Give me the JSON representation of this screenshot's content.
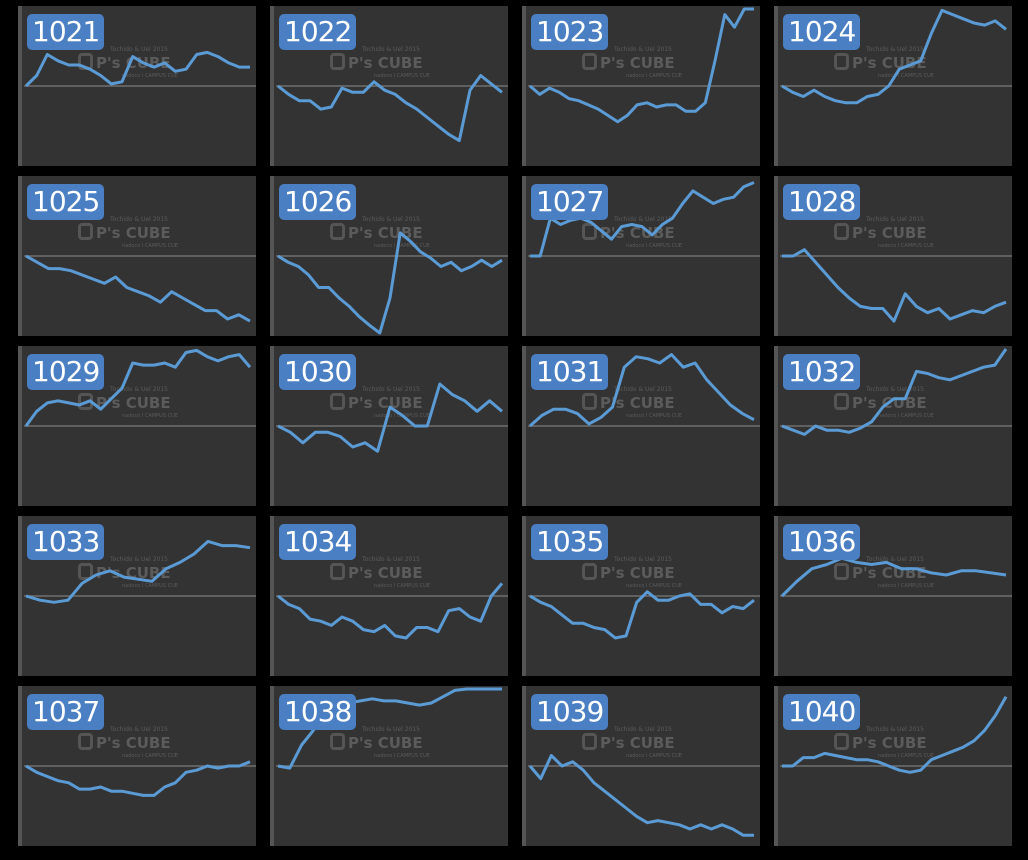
{
  "chart_data": [
    {
      "type": "line",
      "title": "1021",
      "baseline": 0,
      "y": [
        0,
        5,
        15,
        12,
        10,
        10,
        8,
        5,
        1,
        2,
        14,
        11,
        9,
        11,
        7,
        8,
        15,
        16,
        14,
        11,
        9,
        9
      ]
    },
    {
      "type": "line",
      "title": "1022",
      "baseline": 0,
      "y": [
        0,
        -4,
        -7,
        -7,
        -11,
        -10,
        -1,
        -3,
        -3,
        2,
        -2,
        -4,
        -8,
        -11,
        -15,
        -19,
        -23,
        -26,
        -2,
        5,
        1,
        -3
      ]
    },
    {
      "type": "line",
      "title": "1023",
      "baseline": 0,
      "y": [
        0,
        -4,
        -1,
        -3,
        -6,
        -7,
        -9,
        -11,
        -14,
        -17,
        -14,
        -9,
        -8,
        -10,
        -9,
        -9,
        -12,
        -12,
        -8,
        12,
        34,
        28,
        55,
        56
      ]
    },
    {
      "type": "line",
      "title": "1024",
      "baseline": 0,
      "y": [
        0,
        -3,
        -5,
        -2,
        -5,
        -7,
        -8,
        -8,
        -5,
        -4,
        0,
        8,
        10,
        12,
        25,
        36,
        34,
        32,
        30,
        29,
        31,
        27
      ]
    },
    {
      "type": "line",
      "title": "1025",
      "baseline": 0,
      "y": [
        0,
        -3,
        -6,
        -6,
        -7,
        -9,
        -11,
        -13,
        -10,
        -15,
        -17,
        -19,
        -22,
        -17,
        -20,
        -23,
        -26,
        -26,
        -30,
        -28,
        -31
      ]
    },
    {
      "type": "line",
      "title": "1026",
      "baseline": 0,
      "y": [
        0,
        -3,
        -5,
        -9,
        -15,
        -15,
        -20,
        -24,
        -29,
        -33,
        -38,
        -20,
        11,
        7,
        2,
        -1,
        -5,
        -3,
        -7,
        -5,
        -2,
        -5,
        -2
      ]
    },
    {
      "type": "line",
      "title": "1027",
      "baseline": 0,
      "y": [
        0,
        0,
        18,
        15,
        17,
        18,
        16,
        12,
        8,
        14,
        15,
        14,
        10,
        15,
        18,
        25,
        31,
        28,
        25,
        27,
        28,
        33,
        35
      ]
    },
    {
      "type": "line",
      "title": "1028",
      "baseline": 0,
      "y": [
        0,
        0,
        3,
        -3,
        -9,
        -15,
        -20,
        -24,
        -25,
        -25,
        -31,
        -18,
        -24,
        -27,
        -25,
        -30,
        -28,
        -26,
        -27,
        -24,
        -22
      ]
    },
    {
      "type": "line",
      "title": "1029",
      "baseline": 0,
      "y": [
        0,
        7,
        11,
        12,
        11,
        10,
        12,
        8,
        13,
        18,
        30,
        29,
        29,
        30,
        28,
        35,
        36,
        33,
        31,
        33,
        34,
        28
      ]
    },
    {
      "type": "line",
      "title": "1030",
      "baseline": 0,
      "y": [
        0,
        -3,
        -8,
        -3,
        -3,
        -5,
        -10,
        -8,
        -12,
        9,
        5,
        0,
        0,
        20,
        15,
        12,
        7,
        12,
        7
      ]
    },
    {
      "type": "line",
      "title": "1031",
      "baseline": 0,
      "y": [
        0,
        5,
        8,
        8,
        6,
        1,
        4,
        9,
        28,
        33,
        32,
        30,
        34,
        28,
        30,
        22,
        16,
        10,
        6,
        3
      ]
    },
    {
      "type": "line",
      "title": "1032",
      "baseline": 0,
      "y": [
        0,
        -2,
        -4,
        0,
        -2,
        -2,
        -3,
        -1,
        2,
        9,
        13,
        13,
        26,
        25,
        23,
        22,
        24,
        26,
        28,
        29,
        37
      ]
    },
    {
      "type": "line",
      "title": "1033",
      "baseline": 0,
      "y": [
        0,
        -2,
        -3,
        -2,
        6,
        10,
        12,
        9,
        8,
        7,
        13,
        16,
        20,
        26,
        24,
        24,
        23
      ]
    },
    {
      "type": "line",
      "title": "1034",
      "baseline": 0,
      "y": [
        0,
        -4,
        -6,
        -11,
        -12,
        -14,
        -10,
        -12,
        -16,
        -17,
        -14,
        -19,
        -20,
        -15,
        -15,
        -17,
        -7,
        -6,
        -10,
        -12,
        0,
        6
      ]
    },
    {
      "type": "line",
      "title": "1035",
      "baseline": 0,
      "y": [
        0,
        -3,
        -5,
        -9,
        -13,
        -13,
        -15,
        -16,
        -20,
        -19,
        -3,
        2,
        -2,
        -2,
        0,
        1,
        -4,
        -4,
        -8,
        -5,
        -6,
        -2
      ]
    },
    {
      "type": "line",
      "title": "1036",
      "baseline": 0,
      "y": [
        0,
        7,
        13,
        15,
        18,
        16,
        15,
        16,
        13,
        13,
        11,
        10,
        12,
        12,
        11,
        10
      ]
    },
    {
      "type": "line",
      "title": "1037",
      "baseline": 0,
      "y": [
        0,
        -3,
        -5,
        -7,
        -8,
        -11,
        -11,
        -10,
        -12,
        -12,
        -13,
        -14,
        -14,
        -10,
        -8,
        -3,
        -2,
        0,
        -1,
        0,
        0,
        2
      ]
    },
    {
      "type": "line",
      "title": "1038",
      "baseline": 0,
      "y": [
        0,
        -1,
        10,
        17,
        25,
        29,
        30,
        31,
        32,
        31,
        31,
        30,
        29,
        30,
        33,
        36,
        40,
        44,
        41,
        44
      ]
    },
    {
      "type": "line",
      "title": "1039",
      "baseline": 0,
      "y": [
        0,
        -6,
        5,
        0,
        2,
        -2,
        -8,
        -12,
        -16,
        -20,
        -24,
        -27,
        -26,
        -27,
        -28,
        -30,
        -28,
        -30,
        -28,
        -30,
        -33,
        -33
      ]
    },
    {
      "type": "line",
      "title": "1040",
      "baseline": 0,
      "y": [
        0,
        0,
        4,
        4,
        6,
        5,
        4,
        3,
        3,
        2,
        0,
        -2,
        -3,
        -2,
        3,
        5,
        7,
        9,
        12,
        17,
        24,
        33
      ]
    }
  ],
  "watermark": {
    "main": "P's CUBE",
    "top": "Tochido & Uel 2015",
    "bottom": "nadoco  I  CAMPUS  CUE"
  },
  "colors": {
    "background": "#000000",
    "panel": "#333333",
    "line": "#5b9bd5",
    "baseline": "#707070",
    "badge": "#4a7fc4"
  }
}
